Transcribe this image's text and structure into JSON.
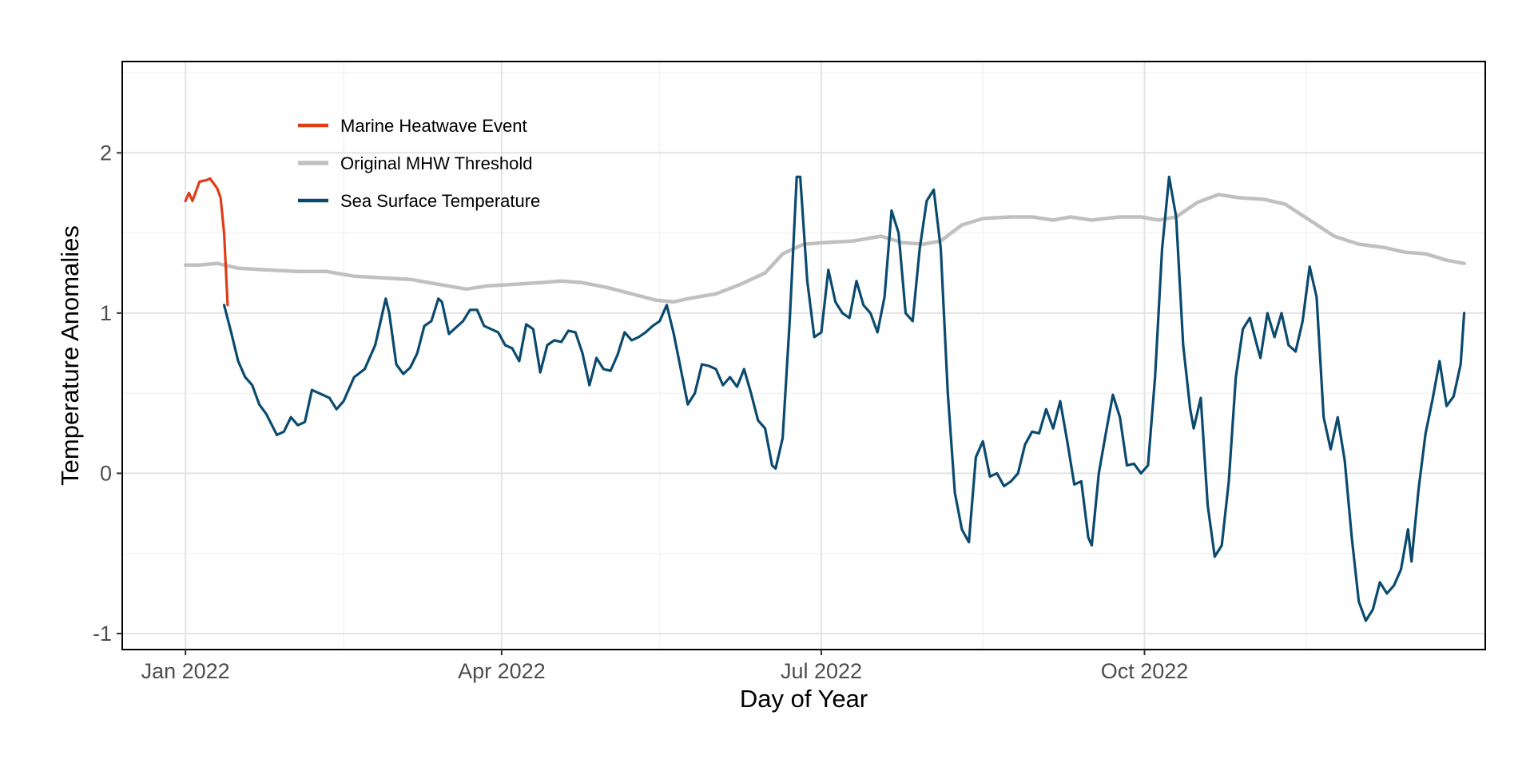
{
  "chart_data": {
    "type": "line",
    "title": "",
    "xlabel": "Day of Year",
    "ylabel": "Temperature Anomalies",
    "x_domain": [
      "2021-12-14",
      "2023-01-06"
    ],
    "ylim": [
      -1.1,
      2.57
    ],
    "x_ticks": [
      {
        "date": "2022-01-01",
        "label": "Jan 2022"
      },
      {
        "date": "2022-04-01",
        "label": "Apr 2022"
      },
      {
        "date": "2022-07-01",
        "label": "Jul 2022"
      },
      {
        "date": "2022-10-01",
        "label": "Oct 2022"
      }
    ],
    "x_minor_ticks": [
      "2022-02-15",
      "2022-05-16",
      "2022-08-16",
      "2022-11-16"
    ],
    "y_ticks": [
      {
        "value": -1,
        "label": "-1"
      },
      {
        "value": 0,
        "label": "0"
      },
      {
        "value": 1,
        "label": "1"
      },
      {
        "value": 2,
        "label": "2"
      }
    ],
    "y_minor_ticks": [
      -0.5,
      0.5,
      1.5,
      2.5
    ],
    "grid": true,
    "legend_position": "top-left",
    "series": [
      {
        "name": "Original MHW Threshold",
        "color": "#c0c0c0",
        "points": [
          [
            "2022-01-01",
            1.3
          ],
          [
            "2022-01-05",
            1.3
          ],
          [
            "2022-01-10",
            1.31
          ],
          [
            "2022-01-16",
            1.28
          ],
          [
            "2022-01-24",
            1.27
          ],
          [
            "2022-02-02",
            1.26
          ],
          [
            "2022-02-10",
            1.26
          ],
          [
            "2022-02-18",
            1.23
          ],
          [
            "2022-02-26",
            1.22
          ],
          [
            "2022-03-06",
            1.21
          ],
          [
            "2022-03-14",
            1.18
          ],
          [
            "2022-03-22",
            1.15
          ],
          [
            "2022-03-28",
            1.17
          ],
          [
            "2022-04-05",
            1.18
          ],
          [
            "2022-04-12",
            1.19
          ],
          [
            "2022-04-18",
            1.2
          ],
          [
            "2022-04-24",
            1.19
          ],
          [
            "2022-05-01",
            1.16
          ],
          [
            "2022-05-08",
            1.12
          ],
          [
            "2022-05-15",
            1.08
          ],
          [
            "2022-05-20",
            1.07
          ],
          [
            "2022-05-24",
            1.09
          ],
          [
            "2022-06-01",
            1.12
          ],
          [
            "2022-06-08",
            1.18
          ],
          [
            "2022-06-15",
            1.25
          ],
          [
            "2022-06-20",
            1.37
          ],
          [
            "2022-06-26",
            1.43
          ],
          [
            "2022-07-02",
            1.44
          ],
          [
            "2022-07-10",
            1.45
          ],
          [
            "2022-07-18",
            1.48
          ],
          [
            "2022-07-24",
            1.44
          ],
          [
            "2022-07-30",
            1.43
          ],
          [
            "2022-08-04",
            1.45
          ],
          [
            "2022-08-10",
            1.55
          ],
          [
            "2022-08-16",
            1.59
          ],
          [
            "2022-08-24",
            1.6
          ],
          [
            "2022-08-30",
            1.6
          ],
          [
            "2022-09-05",
            1.58
          ],
          [
            "2022-09-10",
            1.6
          ],
          [
            "2022-09-16",
            1.58
          ],
          [
            "2022-09-24",
            1.6
          ],
          [
            "2022-09-30",
            1.6
          ],
          [
            "2022-10-05",
            1.58
          ],
          [
            "2022-10-10",
            1.6
          ],
          [
            "2022-10-16",
            1.69
          ],
          [
            "2022-10-22",
            1.74
          ],
          [
            "2022-10-28",
            1.72
          ],
          [
            "2022-11-04",
            1.71
          ],
          [
            "2022-11-10",
            1.68
          ],
          [
            "2022-11-17",
            1.58
          ],
          [
            "2022-11-24",
            1.48
          ],
          [
            "2022-12-01",
            1.43
          ],
          [
            "2022-12-08",
            1.41
          ],
          [
            "2022-12-14",
            1.38
          ],
          [
            "2022-12-20",
            1.37
          ],
          [
            "2022-12-26",
            1.33
          ],
          [
            "2022-12-31",
            1.31
          ]
        ]
      },
      {
        "name": "Sea Surface Temperature",
        "color": "#0b4a6f",
        "points": [
          [
            "2022-01-12",
            1.05
          ],
          [
            "2022-01-14",
            0.88
          ],
          [
            "2022-01-16",
            0.7
          ],
          [
            "2022-01-18",
            0.6
          ],
          [
            "2022-01-20",
            0.55
          ],
          [
            "2022-01-22",
            0.43
          ],
          [
            "2022-01-24",
            0.37
          ],
          [
            "2022-01-27",
            0.24
          ],
          [
            "2022-01-29",
            0.26
          ],
          [
            "2022-01-31",
            0.35
          ],
          [
            "2022-02-02",
            0.3
          ],
          [
            "2022-02-04",
            0.32
          ],
          [
            "2022-02-06",
            0.52
          ],
          [
            "2022-02-08",
            0.5
          ],
          [
            "2022-02-11",
            0.47
          ],
          [
            "2022-02-13",
            0.4
          ],
          [
            "2022-02-15",
            0.45
          ],
          [
            "2022-02-18",
            0.6
          ],
          [
            "2022-02-21",
            0.65
          ],
          [
            "2022-02-24",
            0.8
          ],
          [
            "2022-02-27",
            1.09
          ],
          [
            "2022-02-28",
            1.0
          ],
          [
            "2022-03-02",
            0.68
          ],
          [
            "2022-03-04",
            0.62
          ],
          [
            "2022-03-06",
            0.66
          ],
          [
            "2022-03-08",
            0.75
          ],
          [
            "2022-03-10",
            0.92
          ],
          [
            "2022-03-12",
            0.95
          ],
          [
            "2022-03-14",
            1.09
          ],
          [
            "2022-03-15",
            1.07
          ],
          [
            "2022-03-17",
            0.87
          ],
          [
            "2022-03-19",
            0.91
          ],
          [
            "2022-03-21",
            0.95
          ],
          [
            "2022-03-23",
            1.02
          ],
          [
            "2022-03-25",
            1.02
          ],
          [
            "2022-03-27",
            0.92
          ],
          [
            "2022-03-29",
            0.9
          ],
          [
            "2022-03-31",
            0.88
          ],
          [
            "2022-04-02",
            0.8
          ],
          [
            "2022-04-04",
            0.78
          ],
          [
            "2022-04-06",
            0.7
          ],
          [
            "2022-04-08",
            0.93
          ],
          [
            "2022-04-10",
            0.9
          ],
          [
            "2022-04-12",
            0.63
          ],
          [
            "2022-04-14",
            0.8
          ],
          [
            "2022-04-16",
            0.83
          ],
          [
            "2022-04-18",
            0.82
          ],
          [
            "2022-04-20",
            0.89
          ],
          [
            "2022-04-22",
            0.88
          ],
          [
            "2022-04-24",
            0.75
          ],
          [
            "2022-04-26",
            0.55
          ],
          [
            "2022-04-28",
            0.72
          ],
          [
            "2022-04-30",
            0.65
          ],
          [
            "2022-05-02",
            0.64
          ],
          [
            "2022-05-04",
            0.74
          ],
          [
            "2022-05-06",
            0.88
          ],
          [
            "2022-05-08",
            0.83
          ],
          [
            "2022-05-10",
            0.85
          ],
          [
            "2022-05-12",
            0.88
          ],
          [
            "2022-05-14",
            0.92
          ],
          [
            "2022-05-16",
            0.95
          ],
          [
            "2022-05-18",
            1.05
          ],
          [
            "2022-05-20",
            0.87
          ],
          [
            "2022-05-22",
            0.65
          ],
          [
            "2022-05-24",
            0.43
          ],
          [
            "2022-05-26",
            0.5
          ],
          [
            "2022-05-28",
            0.68
          ],
          [
            "2022-05-30",
            0.67
          ],
          [
            "2022-06-01",
            0.65
          ],
          [
            "2022-06-03",
            0.55
          ],
          [
            "2022-06-05",
            0.6
          ],
          [
            "2022-06-07",
            0.54
          ],
          [
            "2022-06-09",
            0.65
          ],
          [
            "2022-06-11",
            0.5
          ],
          [
            "2022-06-13",
            0.33
          ],
          [
            "2022-06-15",
            0.28
          ],
          [
            "2022-06-17",
            0.05
          ],
          [
            "2022-06-18",
            0.03
          ],
          [
            "2022-06-20",
            0.22
          ],
          [
            "2022-06-22",
            0.95
          ],
          [
            "2022-06-24",
            1.85
          ],
          [
            "2022-06-25",
            1.85
          ],
          [
            "2022-06-27",
            1.2
          ],
          [
            "2022-06-29",
            0.85
          ],
          [
            "2022-07-01",
            0.88
          ],
          [
            "2022-07-03",
            1.27
          ],
          [
            "2022-07-05",
            1.07
          ],
          [
            "2022-07-07",
            1.0
          ],
          [
            "2022-07-09",
            0.97
          ],
          [
            "2022-07-11",
            1.2
          ],
          [
            "2022-07-13",
            1.05
          ],
          [
            "2022-07-15",
            1.0
          ],
          [
            "2022-07-17",
            0.88
          ],
          [
            "2022-07-19",
            1.1
          ],
          [
            "2022-07-21",
            1.64
          ],
          [
            "2022-07-23",
            1.5
          ],
          [
            "2022-07-25",
            1.0
          ],
          [
            "2022-07-27",
            0.95
          ],
          [
            "2022-07-29",
            1.4
          ],
          [
            "2022-07-31",
            1.7
          ],
          [
            "2022-08-02",
            1.77
          ],
          [
            "2022-08-04",
            1.4
          ],
          [
            "2022-08-06",
            0.5
          ],
          [
            "2022-08-08",
            -0.12
          ],
          [
            "2022-08-10",
            -0.35
          ],
          [
            "2022-08-12",
            -0.43
          ],
          [
            "2022-08-14",
            0.1
          ],
          [
            "2022-08-16",
            0.2
          ],
          [
            "2022-08-18",
            -0.02
          ],
          [
            "2022-08-20",
            0.0
          ],
          [
            "2022-08-22",
            -0.08
          ],
          [
            "2022-08-24",
            -0.05
          ],
          [
            "2022-08-26",
            0.0
          ],
          [
            "2022-08-28",
            0.18
          ],
          [
            "2022-08-30",
            0.26
          ],
          [
            "2022-09-01",
            0.25
          ],
          [
            "2022-09-03",
            0.4
          ],
          [
            "2022-09-05",
            0.28
          ],
          [
            "2022-09-07",
            0.45
          ],
          [
            "2022-09-09",
            0.2
          ],
          [
            "2022-09-11",
            -0.07
          ],
          [
            "2022-09-13",
            -0.05
          ],
          [
            "2022-09-15",
            -0.4
          ],
          [
            "2022-09-16",
            -0.45
          ],
          [
            "2022-09-18",
            0.0
          ],
          [
            "2022-09-20",
            0.25
          ],
          [
            "2022-09-22",
            0.49
          ],
          [
            "2022-09-24",
            0.35
          ],
          [
            "2022-09-26",
            0.05
          ],
          [
            "2022-09-28",
            0.06
          ],
          [
            "2022-09-30",
            0.0
          ],
          [
            "2022-10-02",
            0.05
          ],
          [
            "2022-10-04",
            0.6
          ],
          [
            "2022-10-06",
            1.4
          ],
          [
            "2022-10-08",
            1.85
          ],
          [
            "2022-10-10",
            1.6
          ],
          [
            "2022-10-12",
            0.8
          ],
          [
            "2022-10-14",
            0.4
          ],
          [
            "2022-10-15",
            0.28
          ],
          [
            "2022-10-17",
            0.47
          ],
          [
            "2022-10-19",
            -0.2
          ],
          [
            "2022-10-21",
            -0.52
          ],
          [
            "2022-10-23",
            -0.45
          ],
          [
            "2022-10-25",
            -0.05
          ],
          [
            "2022-10-27",
            0.6
          ],
          [
            "2022-10-29",
            0.9
          ],
          [
            "2022-10-31",
            0.97
          ],
          [
            "2022-11-02",
            0.8
          ],
          [
            "2022-11-03",
            0.72
          ],
          [
            "2022-11-05",
            1.0
          ],
          [
            "2022-11-07",
            0.85
          ],
          [
            "2022-11-09",
            1.0
          ],
          [
            "2022-11-11",
            0.8
          ],
          [
            "2022-11-13",
            0.76
          ],
          [
            "2022-11-15",
            0.95
          ],
          [
            "2022-11-17",
            1.29
          ],
          [
            "2022-11-19",
            1.1
          ],
          [
            "2022-11-21",
            0.35
          ],
          [
            "2022-11-23",
            0.15
          ],
          [
            "2022-11-25",
            0.35
          ],
          [
            "2022-11-27",
            0.08
          ],
          [
            "2022-11-29",
            -0.4
          ],
          [
            "2022-12-01",
            -0.8
          ],
          [
            "2022-12-03",
            -0.92
          ],
          [
            "2022-12-05",
            -0.85
          ],
          [
            "2022-12-07",
            -0.68
          ],
          [
            "2022-12-09",
            -0.75
          ],
          [
            "2022-12-11",
            -0.7
          ],
          [
            "2022-12-13",
            -0.6
          ],
          [
            "2022-12-15",
            -0.35
          ],
          [
            "2022-12-16",
            -0.55
          ],
          [
            "2022-12-18",
            -0.1
          ],
          [
            "2022-12-20",
            0.25
          ],
          [
            "2022-12-22",
            0.46
          ],
          [
            "2022-12-24",
            0.7
          ],
          [
            "2022-12-26",
            0.42
          ],
          [
            "2022-12-28",
            0.48
          ],
          [
            "2022-12-30",
            0.68
          ],
          [
            "2022-12-31",
            1.0
          ]
        ]
      },
      {
        "name": "Marine Heatwave Event",
        "color": "#e03c18",
        "points": [
          [
            "2022-01-01",
            1.7
          ],
          [
            "2022-01-02",
            1.75
          ],
          [
            "2022-01-03",
            1.7
          ],
          [
            "2022-01-05",
            1.82
          ],
          [
            "2022-01-07",
            1.83
          ],
          [
            "2022-01-08",
            1.84
          ],
          [
            "2022-01-10",
            1.78
          ],
          [
            "2022-01-11",
            1.72
          ],
          [
            "2022-01-12",
            1.5
          ],
          [
            "2022-01-13",
            1.05
          ]
        ]
      }
    ]
  }
}
